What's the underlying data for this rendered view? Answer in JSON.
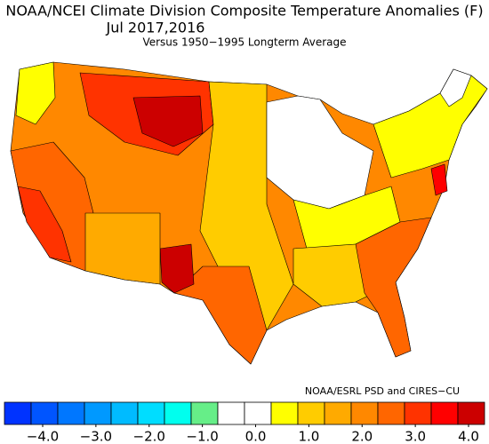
{
  "title": "NOAA/NCEI Climate Division Composite Temperature Anomalies (F)",
  "period": "Jul  2017,2016",
  "subtitle": "Versus 1950−1995 Longterm Average",
  "credit": "NOAA/ESRL PSD and CIRES−CU",
  "colorbar": {
    "colors": [
      "#0033ff",
      "#0055ff",
      "#0077ff",
      "#0099ff",
      "#00bbff",
      "#00ddff",
      "#00ffee",
      "#66ee88",
      "#ffffff",
      "#ffffff",
      "#ffff00",
      "#ffcc00",
      "#ffaa00",
      "#ff8800",
      "#ff6600",
      "#ff3300",
      "#ff0000",
      "#cc0000"
    ],
    "ticks": [
      {
        "value": -4,
        "label": "−4.0"
      },
      {
        "value": -3,
        "label": "−3.0"
      },
      {
        "value": -2,
        "label": "−2.0"
      },
      {
        "value": -1,
        "label": "−1.0"
      },
      {
        "value": 0,
        "label": "0.0"
      },
      {
        "value": 1,
        "label": "1.0"
      },
      {
        "value": 2,
        "label": "2.0"
      },
      {
        "value": 3,
        "label": "3.0"
      },
      {
        "value": 4,
        "label": "4.0"
      }
    ]
  }
}
